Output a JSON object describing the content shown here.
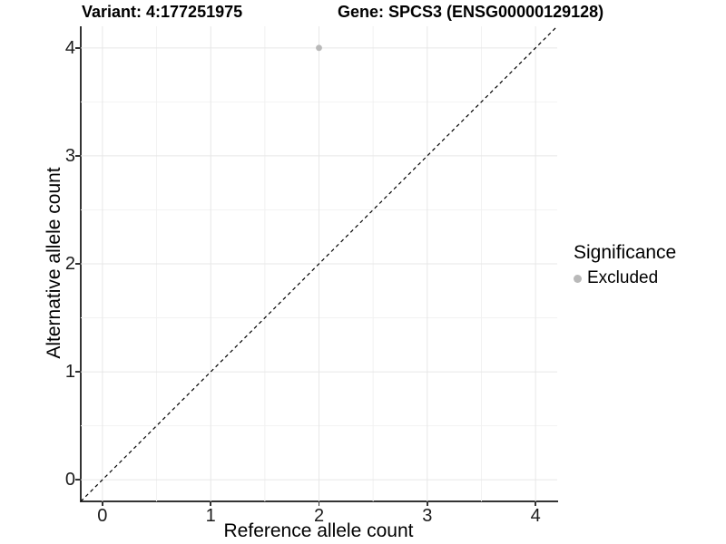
{
  "titles": {
    "variant": "Variant: 4:177251975",
    "gene": "Gene: SPCS3 (ENSG00000129128)"
  },
  "legend": {
    "title": "Significance",
    "items": [
      {
        "label": "Excluded",
        "color": "#b9b9b9"
      }
    ]
  },
  "chart_data": {
    "type": "scatter",
    "title_left": "Variant: 4:177251975",
    "title_right": "Gene: SPCS3 (ENSG00000129128)",
    "xlabel": "Reference allele count",
    "ylabel": "Alternative allele count",
    "xlim": [
      -0.2,
      4.2
    ],
    "ylim": [
      -0.2,
      4.2
    ],
    "xticks": [
      0,
      1,
      2,
      3,
      4
    ],
    "yticks": [
      0,
      1,
      2,
      3,
      4
    ],
    "minor_ticks": [
      0.5,
      1.5,
      2.5,
      3.5
    ],
    "grid": "major and minor, light grey on white",
    "legend_position": "right",
    "series": [
      {
        "name": "Excluded",
        "color": "#b9b9b9",
        "points": [
          {
            "x": 2,
            "y": 4
          }
        ]
      }
    ],
    "reference_line": {
      "style": "dashed",
      "color": "#000000",
      "from": [
        -0.2,
        -0.2
      ],
      "to": [
        4.2,
        4.2
      ]
    }
  },
  "colors": {
    "background": "#ffffff",
    "axis_line": "#333333",
    "tick_text": "#1a1a1a",
    "grid_major": "#e7e7e7",
    "grid_minor": "#f2f2f2",
    "point": "#b9b9b9",
    "reference_line": "#000000"
  }
}
